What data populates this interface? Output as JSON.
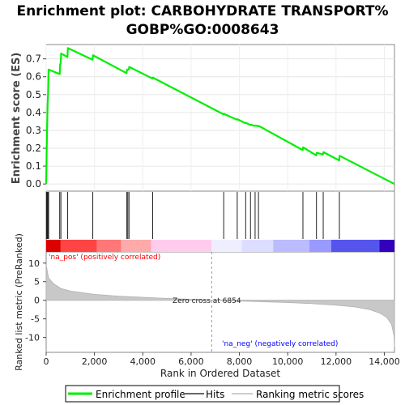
{
  "chart_data": {
    "type": "line",
    "title": "Enrichment plot: CARBOHYDRATE TRANSPORT%\nGOBP%GO:0008643",
    "title_lines": [
      "Enrichment plot: CARBOHYDRATE TRANSPORT%",
      "GOBP%GO:0008643"
    ],
    "es_panel": {
      "ylabel": "Enrichment score (ES)",
      "ylim": [
        -0.04,
        0.78
      ],
      "yticks": [
        0.0,
        0.1,
        0.2,
        0.3,
        0.4,
        0.5,
        0.6,
        0.7
      ],
      "ytick_labels": [
        "0.0",
        "0.1",
        "0.2",
        "0.3",
        "0.4",
        "0.5",
        "0.6",
        "0.7"
      ],
      "series": [
        {
          "name": "Enrichment profile",
          "color": "#00ee00",
          "x": [
            0,
            20,
            40,
            60,
            80,
            100,
            560,
            580,
            600,
            620,
            880,
            900,
            1920,
            1940,
            3330,
            3350,
            3420,
            3440,
            4400,
            4420,
            7340,
            7360,
            7900,
            7920,
            8250,
            8270,
            8450,
            8470,
            8640,
            8660,
            8780,
            8800,
            10620,
            10640,
            11180,
            11200,
            11460,
            11480,
            12130,
            12150,
            14420
          ],
          "y": [
            0.0,
            0.18,
            0.32,
            0.45,
            0.51,
            0.64,
            0.615,
            0.67,
            0.675,
            0.73,
            0.71,
            0.76,
            0.695,
            0.72,
            0.62,
            0.64,
            0.64,
            0.655,
            0.59,
            0.595,
            0.39,
            0.392,
            0.36,
            0.362,
            0.34,
            0.342,
            0.33,
            0.332,
            0.325,
            0.327,
            0.323,
            0.325,
            0.19,
            0.205,
            0.16,
            0.175,
            0.165,
            0.178,
            0.132,
            0.158,
            0.0
          ]
        }
      ]
    },
    "hits": {
      "label": "Hits",
      "positions": [
        15,
        30,
        45,
        60,
        80,
        100,
        560,
        610,
        890,
        1930,
        3340,
        3380,
        3430,
        4410,
        7350,
        7910,
        8260,
        8460,
        8650,
        8790,
        10630,
        11190,
        11470,
        12140
      ]
    },
    "ranking_bar": {
      "segments": [
        {
          "end": 600,
          "color": "#dd0000"
        },
        {
          "end": 2100,
          "color": "#ff4444"
        },
        {
          "end": 3100,
          "color": "#ff7777"
        },
        {
          "end": 4350,
          "color": "#ffaaaa"
        },
        {
          "end": 6850,
          "color": "#ffccee"
        },
        {
          "end": 8100,
          "color": "#eeeeff"
        },
        {
          "end": 9400,
          "color": "#ddddff"
        },
        {
          "end": 10900,
          "color": "#bbbbff"
        },
        {
          "end": 11800,
          "color": "#9999ff"
        },
        {
          "end": 13800,
          "color": "#5555ee"
        },
        {
          "end": 14420,
          "color": "#3300bb"
        }
      ]
    },
    "metric_panel": {
      "ylabel": "Ranked list metric (PreRanked)",
      "ylim": [
        -14,
        13
      ],
      "yticks": [
        10,
        5,
        0,
        -5,
        -10
      ],
      "ytick_labels": [
        "10",
        "5",
        "0",
        "-5",
        "-10"
      ],
      "x": [
        0,
        100,
        300,
        600,
        1000,
        2000,
        3000,
        4000,
        5000,
        6000,
        6854,
        8000,
        9000,
        10000,
        11000,
        12000,
        12800,
        13400,
        13800,
        14100,
        14300,
        14400,
        14420
      ],
      "values": [
        9.5,
        6.0,
        4.5,
        3.2,
        2.5,
        1.6,
        1.1,
        0.8,
        0.5,
        0.25,
        0.0,
        -0.2,
        -0.4,
        -0.6,
        -0.9,
        -1.3,
        -1.8,
        -2.5,
        -3.4,
        -4.6,
        -6.5,
        -9.5,
        -12.5
      ],
      "zero_cross_label": "Zero cross at 6854",
      "zero_cross": 6854,
      "pos_label": "'na_pos' (positively correlated)",
      "neg_label": "'na_neg' (negatively correlated)",
      "pos_color": "#ff0000",
      "neg_color": "#0000ff"
    },
    "x_axis": {
      "label": "Rank in Ordered Dataset",
      "xlim": [
        0,
        14420
      ],
      "ticks": [
        0,
        2000,
        4000,
        6000,
        8000,
        10000,
        12000,
        14000
      ],
      "tick_labels": [
        "0",
        "2,000",
        "4,000",
        "6,000",
        "8,000",
        "10,000",
        "12,000",
        "14,000"
      ]
    },
    "legend": {
      "placement": "bottom",
      "items": [
        {
          "label": "Enrichment profile",
          "color": "#00ee00",
          "kind": "line"
        },
        {
          "label": "Hits",
          "color": "#666666",
          "kind": "line"
        },
        {
          "label": "Ranking metric scores",
          "color": "#cccccc",
          "kind": "line"
        }
      ]
    }
  }
}
